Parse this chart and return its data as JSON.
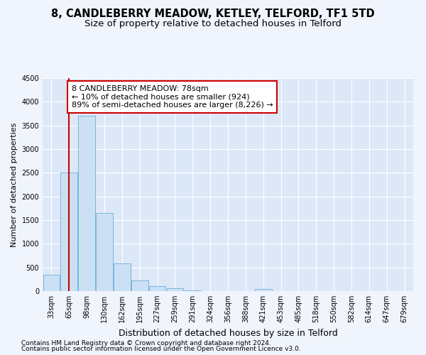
{
  "title": "8, CANDLEBERRY MEADOW, KETLEY, TELFORD, TF1 5TD",
  "subtitle": "Size of property relative to detached houses in Telford",
  "xlabel": "Distribution of detached houses by size in Telford",
  "ylabel": "Number of detached properties",
  "categories": [
    "33sqm",
    "65sqm",
    "98sqm",
    "130sqm",
    "162sqm",
    "195sqm",
    "227sqm",
    "259sqm",
    "291sqm",
    "324sqm",
    "356sqm",
    "388sqm",
    "421sqm",
    "453sqm",
    "485sqm",
    "518sqm",
    "550sqm",
    "582sqm",
    "614sqm",
    "647sqm",
    "679sqm"
  ],
  "values": [
    350,
    2500,
    3700,
    1650,
    580,
    220,
    100,
    60,
    15,
    5,
    5,
    0,
    50,
    0,
    0,
    0,
    0,
    0,
    0,
    0,
    0
  ],
  "bar_color": "#cce0f5",
  "bar_edge_color": "#6aaed6",
  "vline_x_index": 1,
  "vline_color": "#cc0000",
  "annotation_text": "8 CANDLEBERRY MEADOW: 78sqm\n← 10% of detached houses are smaller (924)\n89% of semi-detached houses are larger (8,226) →",
  "annotation_box_facecolor": "#ffffff",
  "annotation_box_edgecolor": "#cc0000",
  "ylim": [
    0,
    4500
  ],
  "yticks": [
    0,
    500,
    1000,
    1500,
    2000,
    2500,
    3000,
    3500,
    4000,
    4500
  ],
  "footer_line1": "Contains HM Land Registry data © Crown copyright and database right 2024.",
  "footer_line2": "Contains public sector information licensed under the Open Government Licence v3.0.",
  "fig_facecolor": "#f0f4fc",
  "plot_facecolor": "#dce8f8",
  "grid_color": "#ffffff",
  "title_fontsize": 10.5,
  "subtitle_fontsize": 9.5,
  "xlabel_fontsize": 9,
  "ylabel_fontsize": 8,
  "tick_fontsize": 7,
  "annotation_fontsize": 8,
  "footer_fontsize": 6.5
}
